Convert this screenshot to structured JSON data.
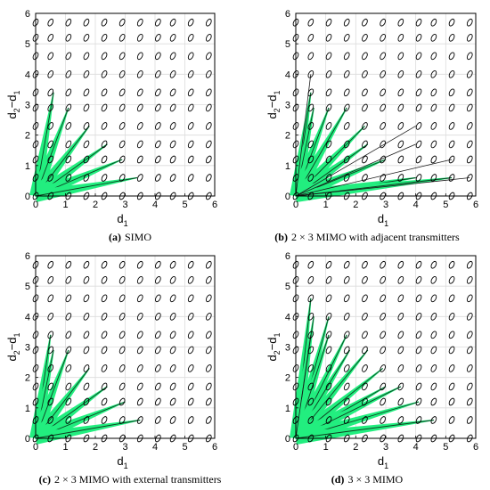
{
  "chart_data": [
    {
      "type": "scatter",
      "subplot_letter": "(a)",
      "caption": "SIMO",
      "xlabel": "d",
      "xlabel_sub": "1",
      "ylabel": "d",
      "ylabel_sub_a": "2",
      "ylabel_mid": "−d",
      "ylabel_sub_b": "1",
      "xlim": [
        0,
        6
      ],
      "ylim": [
        0,
        6
      ],
      "xticks": [
        "0",
        "1",
        "2",
        "3",
        "4",
        "5",
        "6"
      ],
      "yticks": [
        "0",
        "1",
        "2",
        "3",
        "4",
        "5",
        "6"
      ],
      "grid": true,
      "rays": [
        [
          0.6,
          3.4
        ],
        [
          1.1,
          2.9
        ],
        [
          1.8,
          2.3
        ],
        [
          2.4,
          1.7
        ],
        [
          2.9,
          1.2
        ],
        [
          3.4,
          0.6
        ]
      ],
      "thin_rays": []
    },
    {
      "type": "scatter",
      "subplot_letter": "(b)",
      "caption": "2 × 3 MIMO with adjacent transmitters",
      "xlabel": "d",
      "xlabel_sub": "1",
      "ylabel": "d",
      "ylabel_sub_a": "2",
      "ylabel_mid": "−d",
      "ylabel_sub_b": "1",
      "xlim": [
        0,
        6
      ],
      "ylim": [
        0,
        6
      ],
      "xticks": [
        "0",
        "1",
        "2",
        "3",
        "4",
        "5",
        "6"
      ],
      "yticks": [
        "0",
        "1",
        "2",
        "3",
        "4",
        "5",
        "6"
      ],
      "grid": true,
      "rays": [
        [
          0.5,
          3.4
        ],
        [
          0.6,
          2.9
        ],
        [
          1.1,
          2.9
        ],
        [
          1.7,
          2.9
        ],
        [
          2.3,
          2.3
        ],
        [
          2.4,
          1.7
        ],
        [
          3.0,
          1.2
        ],
        [
          4.0,
          0.6
        ],
        [
          5.2,
          0.6
        ]
      ],
      "thin_rays": [
        [
          0.5,
          4.0
        ],
        [
          4.0,
          2.3
        ],
        [
          4.0,
          1.7
        ],
        [
          5.2,
          1.2
        ],
        [
          5.8,
          0.6
        ]
      ]
    },
    {
      "type": "scatter",
      "subplot_letter": "(c)",
      "caption": "2 × 3 MIMO with external transmitters",
      "xlabel": "d",
      "xlabel_sub": "1",
      "ylabel": "d",
      "ylabel_sub_a": "2",
      "ylabel_mid": "−d",
      "ylabel_sub_b": "1",
      "xlim": [
        0,
        6
      ],
      "ylim": [
        0,
        6
      ],
      "xticks": [
        "0",
        "1",
        "2",
        "3",
        "4",
        "5",
        "6"
      ],
      "yticks": [
        "0",
        "1",
        "2",
        "3",
        "4",
        "5",
        "6"
      ],
      "grid": true,
      "rays": [
        [
          0.5,
          3.4
        ],
        [
          0.6,
          2.9
        ],
        [
          1.1,
          2.9
        ],
        [
          1.8,
          2.3
        ],
        [
          2.4,
          1.7
        ],
        [
          3.0,
          1.2
        ],
        [
          3.5,
          0.6
        ]
      ],
      "thin_rays": []
    },
    {
      "type": "scatter",
      "subplot_letter": "(d)",
      "caption": "3 × 3 MIMO",
      "xlabel": "d",
      "xlabel_sub": "1",
      "ylabel": "d",
      "ylabel_sub_a": "2",
      "ylabel_mid": "−d",
      "ylabel_sub_b": "1",
      "xlim": [
        0,
        6
      ],
      "ylim": [
        0,
        6
      ],
      "xticks": [
        "0",
        "1",
        "2",
        "3",
        "4",
        "5",
        "6"
      ],
      "yticks": [
        "0",
        "1",
        "2",
        "3",
        "4",
        "5",
        "6"
      ],
      "grid": true,
      "rays": [
        [
          0.5,
          4.6
        ],
        [
          0.6,
          4.0
        ],
        [
          1.1,
          4.0
        ],
        [
          1.1,
          3.4
        ],
        [
          1.7,
          3.4
        ],
        [
          1.8,
          2.9
        ],
        [
          2.4,
          2.9
        ],
        [
          2.9,
          2.3
        ],
        [
          3.0,
          1.7
        ],
        [
          3.5,
          1.7
        ],
        [
          4.1,
          1.2
        ],
        [
          4.6,
          0.6
        ]
      ],
      "thin_rays": [
        [
          0.5,
          3.4
        ]
      ]
    }
  ]
}
